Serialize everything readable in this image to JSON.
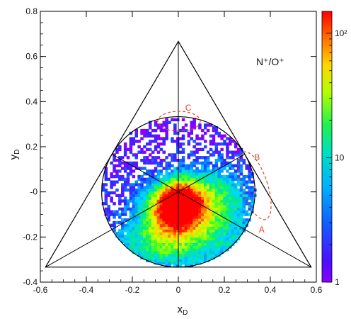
{
  "chart_data": {
    "type": "heatmap",
    "xlabel_main": "x",
    "xlabel_sub": "D",
    "ylabel_main": "y",
    "ylabel_sub": "D",
    "xlim": [
      -0.6,
      0.6
    ],
    "ylim": [
      -0.4,
      0.8
    ],
    "x_ticks": [
      -0.6,
      -0.4,
      -0.2,
      0,
      0.2,
      0.4,
      0.6
    ],
    "x_tick_labels": [
      "-0.6",
      "-0.4",
      "-0.2",
      "0",
      "0.2",
      "0.4",
      "0.6"
    ],
    "y_ticks": [
      -0.4,
      -0.2,
      0,
      0.2,
      0.4,
      0.6,
      0.8
    ],
    "y_tick_labels": [
      "-0.4",
      "-0.2",
      "-0",
      "0.2",
      "0.4",
      "0.6",
      "0.8"
    ],
    "annotation_main": "N⁺/O⁺",
    "colorbar": {
      "scale": "log",
      "range": [
        1,
        150
      ],
      "tick_labels": [
        {
          "value": 1,
          "label": "1"
        },
        {
          "value": 10,
          "label": "10"
        },
        {
          "value": 100,
          "label": "10²"
        }
      ],
      "colors": [
        "#8a00ff",
        "#2a2aff",
        "#0090ff",
        "#00d8ff",
        "#00e890",
        "#40ff20",
        "#d8ff00",
        "#ffd000",
        "#ff6000",
        "#ff0000"
      ]
    },
    "dalitz_triangle": {
      "vertices": [
        [
          0,
          0.6667
        ],
        [
          -0.5774,
          -0.3333
        ],
        [
          0.5774,
          -0.3333
        ]
      ],
      "inscribed_circle": {
        "center": [
          0,
          0
        ],
        "radius": 0.3333
      }
    },
    "distribution": {
      "peak": {
        "x": 0.0,
        "y": -0.05,
        "counts": 150
      },
      "description_lobes": [
        {
          "x": 0.15,
          "y": -0.05
        },
        {
          "x": -0.05,
          "y": -0.15
        }
      ]
    },
    "regions": [
      {
        "label": "A",
        "text_x": 0.35,
        "text_y": -0.18
      },
      {
        "label": "B",
        "text_x": 0.33,
        "text_y": 0.14
      },
      {
        "label": "C",
        "text_x": 0.03,
        "text_y": 0.36
      }
    ]
  }
}
